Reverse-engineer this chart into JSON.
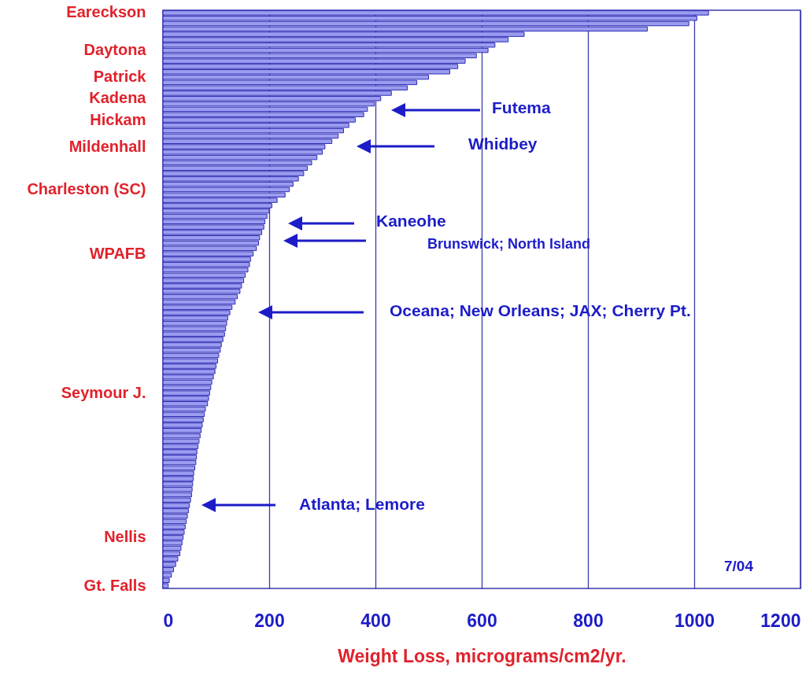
{
  "chart_data": {
    "type": "bar",
    "orientation": "horizontal",
    "color": "#9c9cf0",
    "xlabel": "Weight Loss, micrograms/cm2/yr.",
    "xlim": [
      0,
      1200
    ],
    "xticks": [
      0,
      200,
      400,
      600,
      800,
      1000,
      1200
    ],
    "grid": "x",
    "categories": [
      "Eareckson",
      null,
      null,
      null,
      null,
      null,
      null,
      "Daytona",
      null,
      null,
      null,
      null,
      "Patrick",
      null,
      null,
      null,
      "Kadena",
      null,
      null,
      null,
      "Hickam",
      null,
      null,
      null,
      null,
      "Mildenhall",
      null,
      null,
      null,
      null,
      null,
      null,
      null,
      "Charleston (SC)",
      null,
      null,
      null,
      null,
      null,
      null,
      null,
      null,
      null,
      null,
      null,
      "WPAFB",
      null,
      null,
      null,
      null,
      null,
      null,
      null,
      null,
      null,
      null,
      null,
      null,
      null,
      null,
      null,
      null,
      null,
      null,
      null,
      null,
      null,
      null,
      null,
      null,
      null,
      "Seymour J.",
      null,
      null,
      null,
      null,
      null,
      null,
      null,
      null,
      null,
      null,
      null,
      null,
      null,
      null,
      null,
      null,
      null,
      null,
      null,
      null,
      null,
      null,
      null,
      null,
      null,
      null,
      "Nellis",
      null,
      null,
      null,
      null,
      null,
      null,
      null,
      null,
      "Gt. Falls"
    ],
    "values": [
      1027,
      1005,
      990,
      912,
      680,
      650,
      625,
      612,
      590,
      569,
      555,
      540,
      500,
      478,
      460,
      430,
      410,
      398,
      385,
      378,
      362,
      350,
      340,
      330,
      318,
      305,
      300,
      290,
      280,
      272,
      265,
      255,
      245,
      238,
      230,
      215,
      205,
      200,
      196,
      192,
      190,
      186,
      182,
      180,
      176,
      170,
      165,
      163,
      160,
      155,
      152,
      148,
      145,
      140,
      136,
      130,
      126,
      122,
      120,
      118,
      116,
      113,
      110,
      108,
      105,
      103,
      100,
      98,
      95,
      92,
      90,
      88,
      86,
      84,
      80,
      78,
      76,
      74,
      72,
      70,
      68,
      66,
      64,
      63,
      62,
      60,
      58,
      57,
      56,
      55,
      54,
      52,
      50,
      48,
      46,
      44,
      42,
      40,
      38,
      36,
      34,
      32,
      28,
      24,
      20,
      16,
      12,
      10
    ],
    "annotations": [
      "Futema",
      "Whidbey",
      "Kaneohe",
      "Brunswick; North Island",
      "Oceana; New Orleans; JAX; Cherry Pt.",
      "Atlanta; Lemore",
      "7/04"
    ]
  }
}
